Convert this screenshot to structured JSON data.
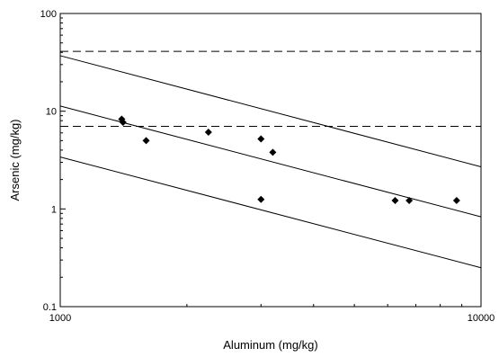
{
  "chart_data": {
    "type": "scatter",
    "title": "",
    "xlabel": "Aluminum (mg/kg)",
    "ylabel": "Arsenic (mg/kg)",
    "x_scale": "log",
    "y_scale": "log",
    "xlim": [
      1000,
      10000
    ],
    "ylim": [
      0.1,
      100
    ],
    "x_ticks": [
      1000,
      10000
    ],
    "y_ticks": [
      0.1,
      1,
      10,
      100
    ],
    "x_tick_labels": [
      "1000",
      "10000"
    ],
    "y_tick_labels": [
      "0.1",
      "1",
      "10",
      "100"
    ],
    "grid": false,
    "legend": "none",
    "series": [
      {
        "marker": "diamond",
        "color": "#000000",
        "points": [
          {
            "x": 1400,
            "y": 8.3
          },
          {
            "x": 1410,
            "y": 7.7
          },
          {
            "x": 1600,
            "y": 5.0
          },
          {
            "x": 2250,
            "y": 6.1
          },
          {
            "x": 3000,
            "y": 5.2
          },
          {
            "x": 3200,
            "y": 3.8
          },
          {
            "x": 3000,
            "y": 1.25
          },
          {
            "x": 6250,
            "y": 1.22
          },
          {
            "x": 6750,
            "y": 1.22
          },
          {
            "x": 8750,
            "y": 1.22
          }
        ]
      }
    ],
    "reference_lines": [
      {
        "style": "dashed",
        "y": 41
      },
      {
        "style": "dashed",
        "y": 7.0
      }
    ],
    "fit_lines": [
      {
        "style": "solid",
        "x": [
          1000,
          10000
        ],
        "y": [
          37,
          2.7
        ]
      },
      {
        "style": "solid",
        "x": [
          1000,
          10000
        ],
        "y": [
          11.3,
          0.83
        ]
      },
      {
        "style": "solid",
        "x": [
          1000,
          10000
        ],
        "y": [
          3.4,
          0.25
        ]
      }
    ]
  }
}
